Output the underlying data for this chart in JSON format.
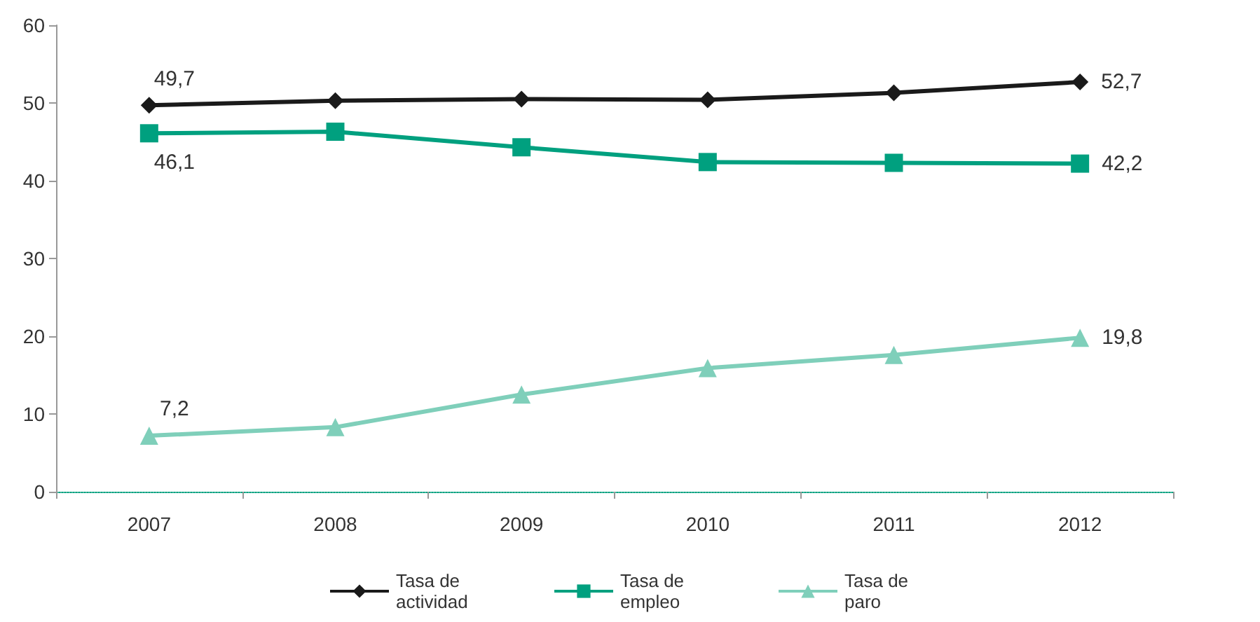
{
  "chart_data": {
    "type": "line",
    "categories": [
      "2007",
      "2008",
      "2009",
      "2010",
      "2011",
      "2012"
    ],
    "series": [
      {
        "name": "Tasa de actividad",
        "color": "#1a1a1a",
        "marker": "diamond",
        "values": [
          49.7,
          50.3,
          50.5,
          50.4,
          51.3,
          52.7
        ],
        "value_labels": [
          "49,7",
          null,
          null,
          null,
          null,
          "52,7"
        ]
      },
      {
        "name": "Tasa de empleo",
        "color": "#00a07f",
        "marker": "square",
        "values": [
          46.1,
          46.3,
          44.3,
          42.4,
          42.3,
          42.2
        ],
        "value_labels": [
          "46,1",
          null,
          null,
          null,
          null,
          "42,2"
        ]
      },
      {
        "name": "Tasa de paro",
        "color": "#7fcfba",
        "marker": "triangle",
        "values": [
          7.2,
          8.3,
          12.5,
          15.9,
          17.6,
          19.8
        ],
        "value_labels": [
          "7,2",
          null,
          null,
          null,
          null,
          "19,8"
        ]
      }
    ],
    "ylim": [
      0,
      60
    ],
    "yticks": [
      0,
      10,
      20,
      30,
      40,
      50,
      60
    ],
    "grid": false,
    "legend": "bottom"
  }
}
